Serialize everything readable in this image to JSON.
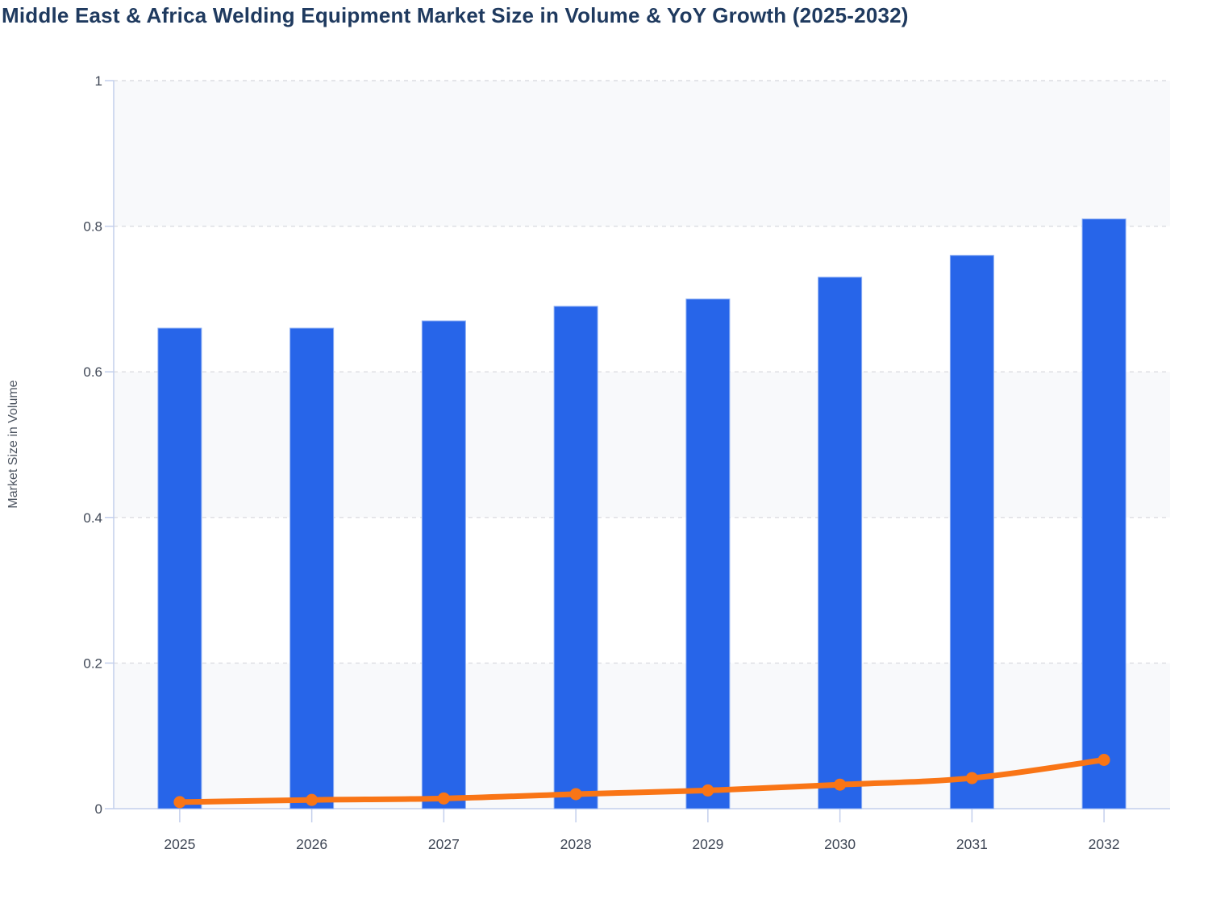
{
  "title": "Middle East & Africa Welding Equipment Market Size in Volume & YoY Growth (2025-2032)",
  "chart_data": {
    "type": "combo",
    "title": "Middle East & Africa Welding Equipment Market Size in Volume & YoY Growth (2025-2032)",
    "xlabel": "",
    "ylabel": "Market Size in Volume",
    "categories": [
      "2025",
      "2026",
      "2027",
      "2028",
      "2029",
      "2030",
      "2031",
      "2032"
    ],
    "series": [
      {
        "name": "Market Size in Volume",
        "type": "bar",
        "values": [
          0.66,
          0.66,
          0.67,
          0.69,
          0.7,
          0.73,
          0.76,
          0.81
        ]
      },
      {
        "name": "YoY Growth",
        "type": "line",
        "values": [
          0.009,
          0.012,
          0.014,
          0.02,
          0.025,
          0.033,
          0.042,
          0.067
        ]
      }
    ],
    "ylim": [
      0,
      1
    ],
    "yticks": [
      0,
      0.2,
      0.4,
      0.6,
      0.8,
      1
    ],
    "ytick_labels": [
      "0",
      "0.2",
      "0.4",
      "0.6",
      "0.8",
      "1"
    ],
    "grid": "horizontal-dashed",
    "legend_position": "none",
    "plot_bands": "alternating horizontal bands, shaded on 0-0.2, 0.4-0.6, 0.8-1.0"
  },
  "colors": {
    "bar_fill": "#2765e9",
    "bar_stroke": "#8fb0f4",
    "line": "#f97516",
    "title_text": "#1f3a5f",
    "tick_label_text": "#3f4756",
    "axis_title_text": "#4e5662",
    "axis_line": "#c3cfec",
    "gridline": "#dcdde2",
    "band_shade": "#f8f9fb",
    "background": "#ffffff"
  }
}
